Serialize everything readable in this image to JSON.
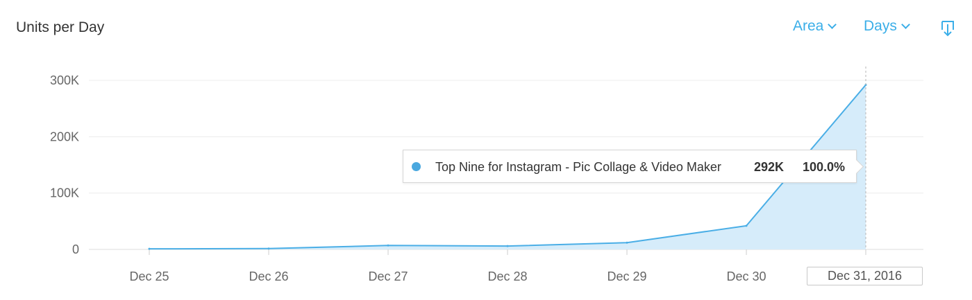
{
  "header": {
    "title": "Units per Day",
    "area_label": "Area",
    "days_label": "Days",
    "download_icon": "download-icon",
    "chevron_icon": "chevron-down-icon"
  },
  "colors": {
    "accent": "#3aaee8",
    "series_line": "#4aaee6",
    "series_fill": "#d6ecfa",
    "series_dot": "#4aa8df"
  },
  "chart_data": {
    "type": "area",
    "title": "Units per Day",
    "xlabel": "",
    "ylabel": "",
    "categories": [
      "Dec 25",
      "Dec 26",
      "Dec 27",
      "Dec 28",
      "Dec 29",
      "Dec 30",
      "Dec 31, 2016"
    ],
    "series": [
      {
        "values": [
          1000,
          1500,
          7000,
          6000,
          12000,
          42000,
          292000
        ]
      }
    ],
    "y_ticks": [
      "0",
      "100K",
      "200K",
      "300K"
    ],
    "y_tick_values": [
      0,
      100000,
      200000,
      300000
    ],
    "ylim": [
      0,
      300000
    ],
    "grid": true,
    "legend": "none",
    "highlight_category": "Dec 31, 2016",
    "tooltip": {
      "series_name": "Top Nine for Instagram - Pic Collage & Video Maker",
      "value": "292K",
      "percent": "100.0%"
    }
  }
}
